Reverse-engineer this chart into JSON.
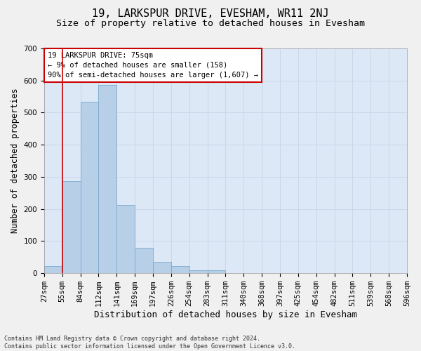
{
  "title": "19, LARKSPUR DRIVE, EVESHAM, WR11 2NJ",
  "subtitle": "Size of property relative to detached houses in Evesham",
  "xlabel": "Distribution of detached houses by size in Evesham",
  "ylabel": "Number of detached properties",
  "footer_line1": "Contains HM Land Registry data © Crown copyright and database right 2024.",
  "footer_line2": "Contains public sector information licensed under the Open Government Licence v3.0.",
  "annotation_title": "19 LARKSPUR DRIVE: 75sqm",
  "annotation_line2": "← 9% of detached houses are smaller (158)",
  "annotation_line3": "90% of semi-detached houses are larger (1,607) →",
  "bar_values": [
    22,
    287,
    533,
    587,
    213,
    79,
    35,
    22,
    10,
    10,
    0,
    0,
    0,
    0,
    0,
    0,
    0,
    0,
    0,
    0
  ],
  "bin_labels": [
    "27sqm",
    "55sqm",
    "84sqm",
    "112sqm",
    "141sqm",
    "169sqm",
    "197sqm",
    "226sqm",
    "254sqm",
    "283sqm",
    "311sqm",
    "340sqm",
    "368sqm",
    "397sqm",
    "425sqm",
    "454sqm",
    "482sqm",
    "511sqm",
    "539sqm",
    "568sqm",
    "596sqm"
  ],
  "bar_color": "#b8cfe8",
  "bar_edge_color": "#7aaad0",
  "annotation_box_color": "#ffffff",
  "annotation_box_edge_color": "#cc0000",
  "vline_x": 1.0,
  "ylim": [
    0,
    700
  ],
  "yticks": [
    0,
    100,
    200,
    300,
    400,
    500,
    600,
    700
  ],
  "grid_color": "#c8d4e8",
  "background_color": "#dce8f5",
  "fig_background_color": "#f0f0f0",
  "title_fontsize": 11,
  "subtitle_fontsize": 9.5,
  "xlabel_fontsize": 9,
  "ylabel_fontsize": 8.5,
  "tick_fontsize": 7.5,
  "annotation_fontsize": 7.5,
  "footer_fontsize": 6
}
